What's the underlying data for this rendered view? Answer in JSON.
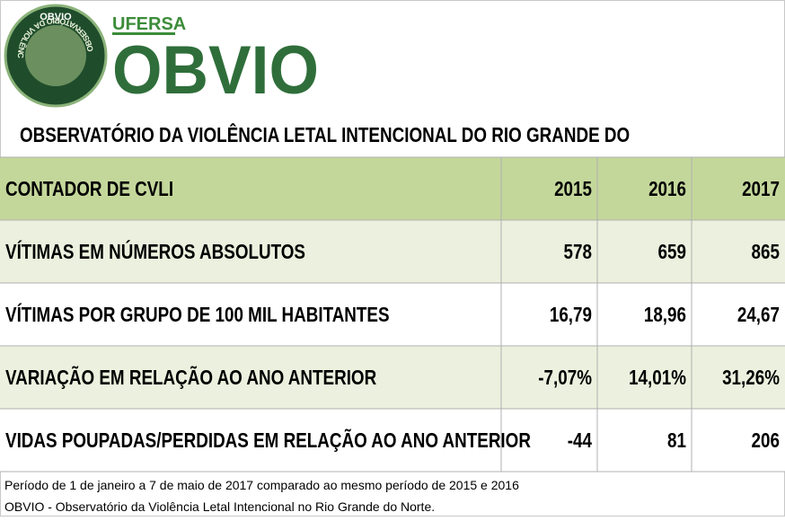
{
  "header": {
    "logo_badge": "OBVIO",
    "logo_ring": "OBSERVATÓRIO DA VIOLÊNCIA LETAL INTENCIONAL",
    "university": "UFERSA",
    "brand": "OBVIO"
  },
  "title": "OBSERVATÓRIO DA VIOLÊNCIA LETAL INTENCIONAL DO RIO GRANDE DO",
  "table": {
    "header": [
      "CONTADOR DE CVLI",
      "2015",
      "2016",
      "2017"
    ],
    "rows": [
      [
        "VÍTIMAS EM NÚMEROS ABSOLUTOS",
        "578",
        "659",
        "865"
      ],
      [
        "VÍTIMAS POR GRUPO DE 100 MIL HABITANTES",
        "16,79",
        "18,96",
        "24,67"
      ],
      [
        "VARIAÇÃO EM RELAÇÃO AO ANO ANTERIOR",
        "-7,07%",
        "14,01%",
        "31,26%"
      ],
      [
        "VIDAS POUPADAS/PERDIDAS EM RELAÇÃO AO ANO ANTERIOR",
        "-44",
        "81",
        "206"
      ]
    ]
  },
  "notes": [
    "Período de 1 de janeiro a 7 de maio de 2017 comparado ao mesmo período de 2015 e 2016",
    "OBVIO - Observatório da Violência Letal Intencional no Rio Grande do Norte."
  ]
}
